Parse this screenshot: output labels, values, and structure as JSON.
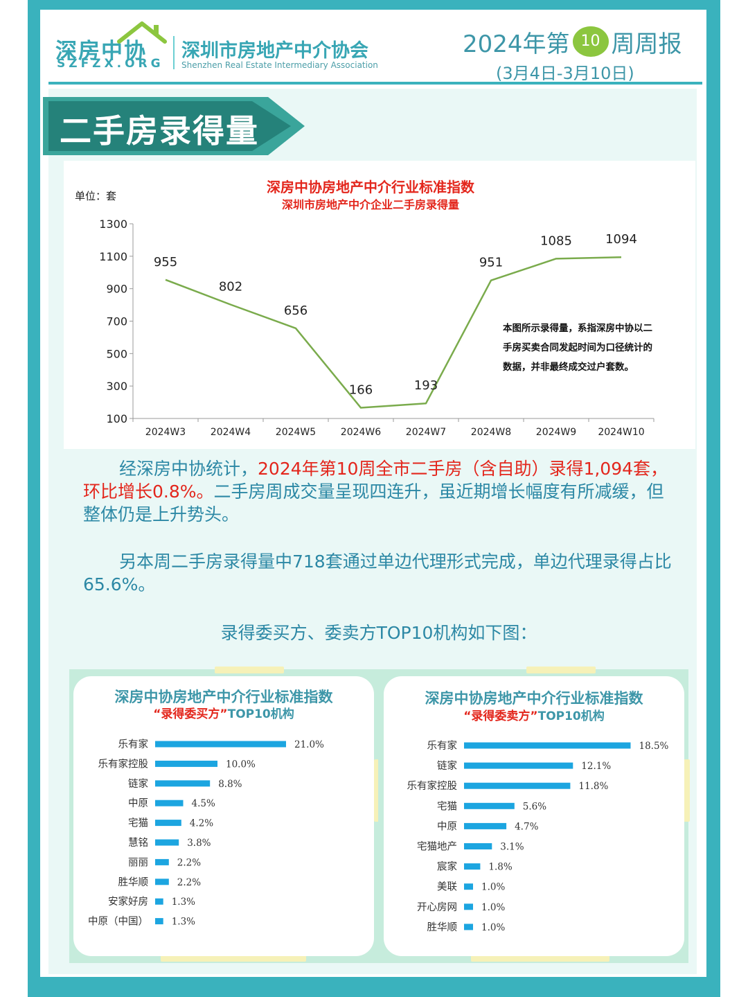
{
  "header": {
    "logo_cn": "深房中协",
    "logo_en": "SZFZX.ORG",
    "org_cn": "深圳市房地产中介协会",
    "org_en": "Shenzhen Real Estate Intermediary Association",
    "week_prefix": "2024年第",
    "week_number": "10",
    "week_suffix": "周周报",
    "date_range": "(3月4日-3月10日)"
  },
  "section_title": "二手房录得量",
  "line_chart": {
    "unit": "单位：套",
    "note": "本图所示录得量，系指深房中协以二手房买卖合同发起时间为口径统计的数据，并非最终成交过户套数。"
  },
  "chart_data": [
    {
      "type": "line",
      "title": "深房中协房地产中介行业标准指数",
      "subtitle": "深圳市房地产中介企业二手房录得量",
      "categories": [
        "2024W3",
        "2024W4",
        "2024W5",
        "2024W6",
        "2024W7",
        "2024W8",
        "2024W9",
        "2024W10"
      ],
      "series": [
        {
          "values": [
            955,
            802,
            656,
            166,
            193,
            951,
            1085,
            1094
          ]
        }
      ],
      "ylim": [
        100,
        1300
      ],
      "yticks": [
        100,
        300,
        500,
        700,
        900,
        1100,
        1300
      ],
      "color": "#7aab4c",
      "grid": false
    },
    {
      "type": "bar",
      "orientation": "horizontal",
      "title": "深房中协房地产中介行业标准指数",
      "subtitle_quote": "“录得委买方”",
      "subtitle_tail": "TOP10机构",
      "categories": [
        "乐有家",
        "乐有家控股",
        "链家",
        "中原",
        "宅猫",
        "慧铭",
        "丽丽",
        "胜华顺",
        "安家好房",
        "中原（中国）"
      ],
      "values": [
        21.0,
        10.0,
        8.8,
        4.5,
        4.2,
        3.8,
        2.2,
        2.2,
        1.3,
        1.3
      ],
      "value_labels": [
        "21.0%",
        "10.0%",
        "8.8%",
        "4.5%",
        "4.2%",
        "3.8%",
        "2.2%",
        "2.2%",
        "1.3%",
        "1.3%"
      ],
      "color": "#1ca5e0"
    },
    {
      "type": "bar",
      "orientation": "horizontal",
      "title": "深房中协房地产中介行业标准指数",
      "subtitle_quote": "“录得委卖方”",
      "subtitle_tail": "TOP10机构",
      "categories": [
        "乐有家",
        "链家",
        "乐有家控股",
        "宅猫",
        "中原",
        "宅猫地产",
        "宸家",
        "美联",
        "开心房网",
        "胜华顺"
      ],
      "values": [
        18.5,
        12.1,
        11.8,
        5.6,
        4.7,
        3.1,
        1.8,
        1.0,
        1.0,
        1.0
      ],
      "value_labels": [
        "18.5%",
        "12.1%",
        "11.8%",
        "5.6%",
        "4.7%",
        "3.1%",
        "1.8%",
        "1.0%",
        "1.0%",
        "1.0%"
      ],
      "color": "#1ca5e0"
    }
  ],
  "paragraphs": {
    "p1_a": "经深房中协统计，",
    "p1_b": "2024年第10周全市二手房（含自助）录得1,094套，环比增长0.8%。",
    "p1_c": "二手房周成交量呈现四连升，虽近期增长幅度有所减缓，但整体仍是上升势头。",
    "p2": "另本周二手房录得量中718套通过单边代理形式完成，单边代理录得占比65.6%。",
    "caption": "录得委买方、委卖方TOP10机构如下图："
  },
  "colors": {
    "teal": "#3ab2bd",
    "text_teal": "#2c88a5",
    "red": "#e3261c",
    "green_badge": "#8cc63f",
    "bar_blue": "#1ca5e0"
  }
}
